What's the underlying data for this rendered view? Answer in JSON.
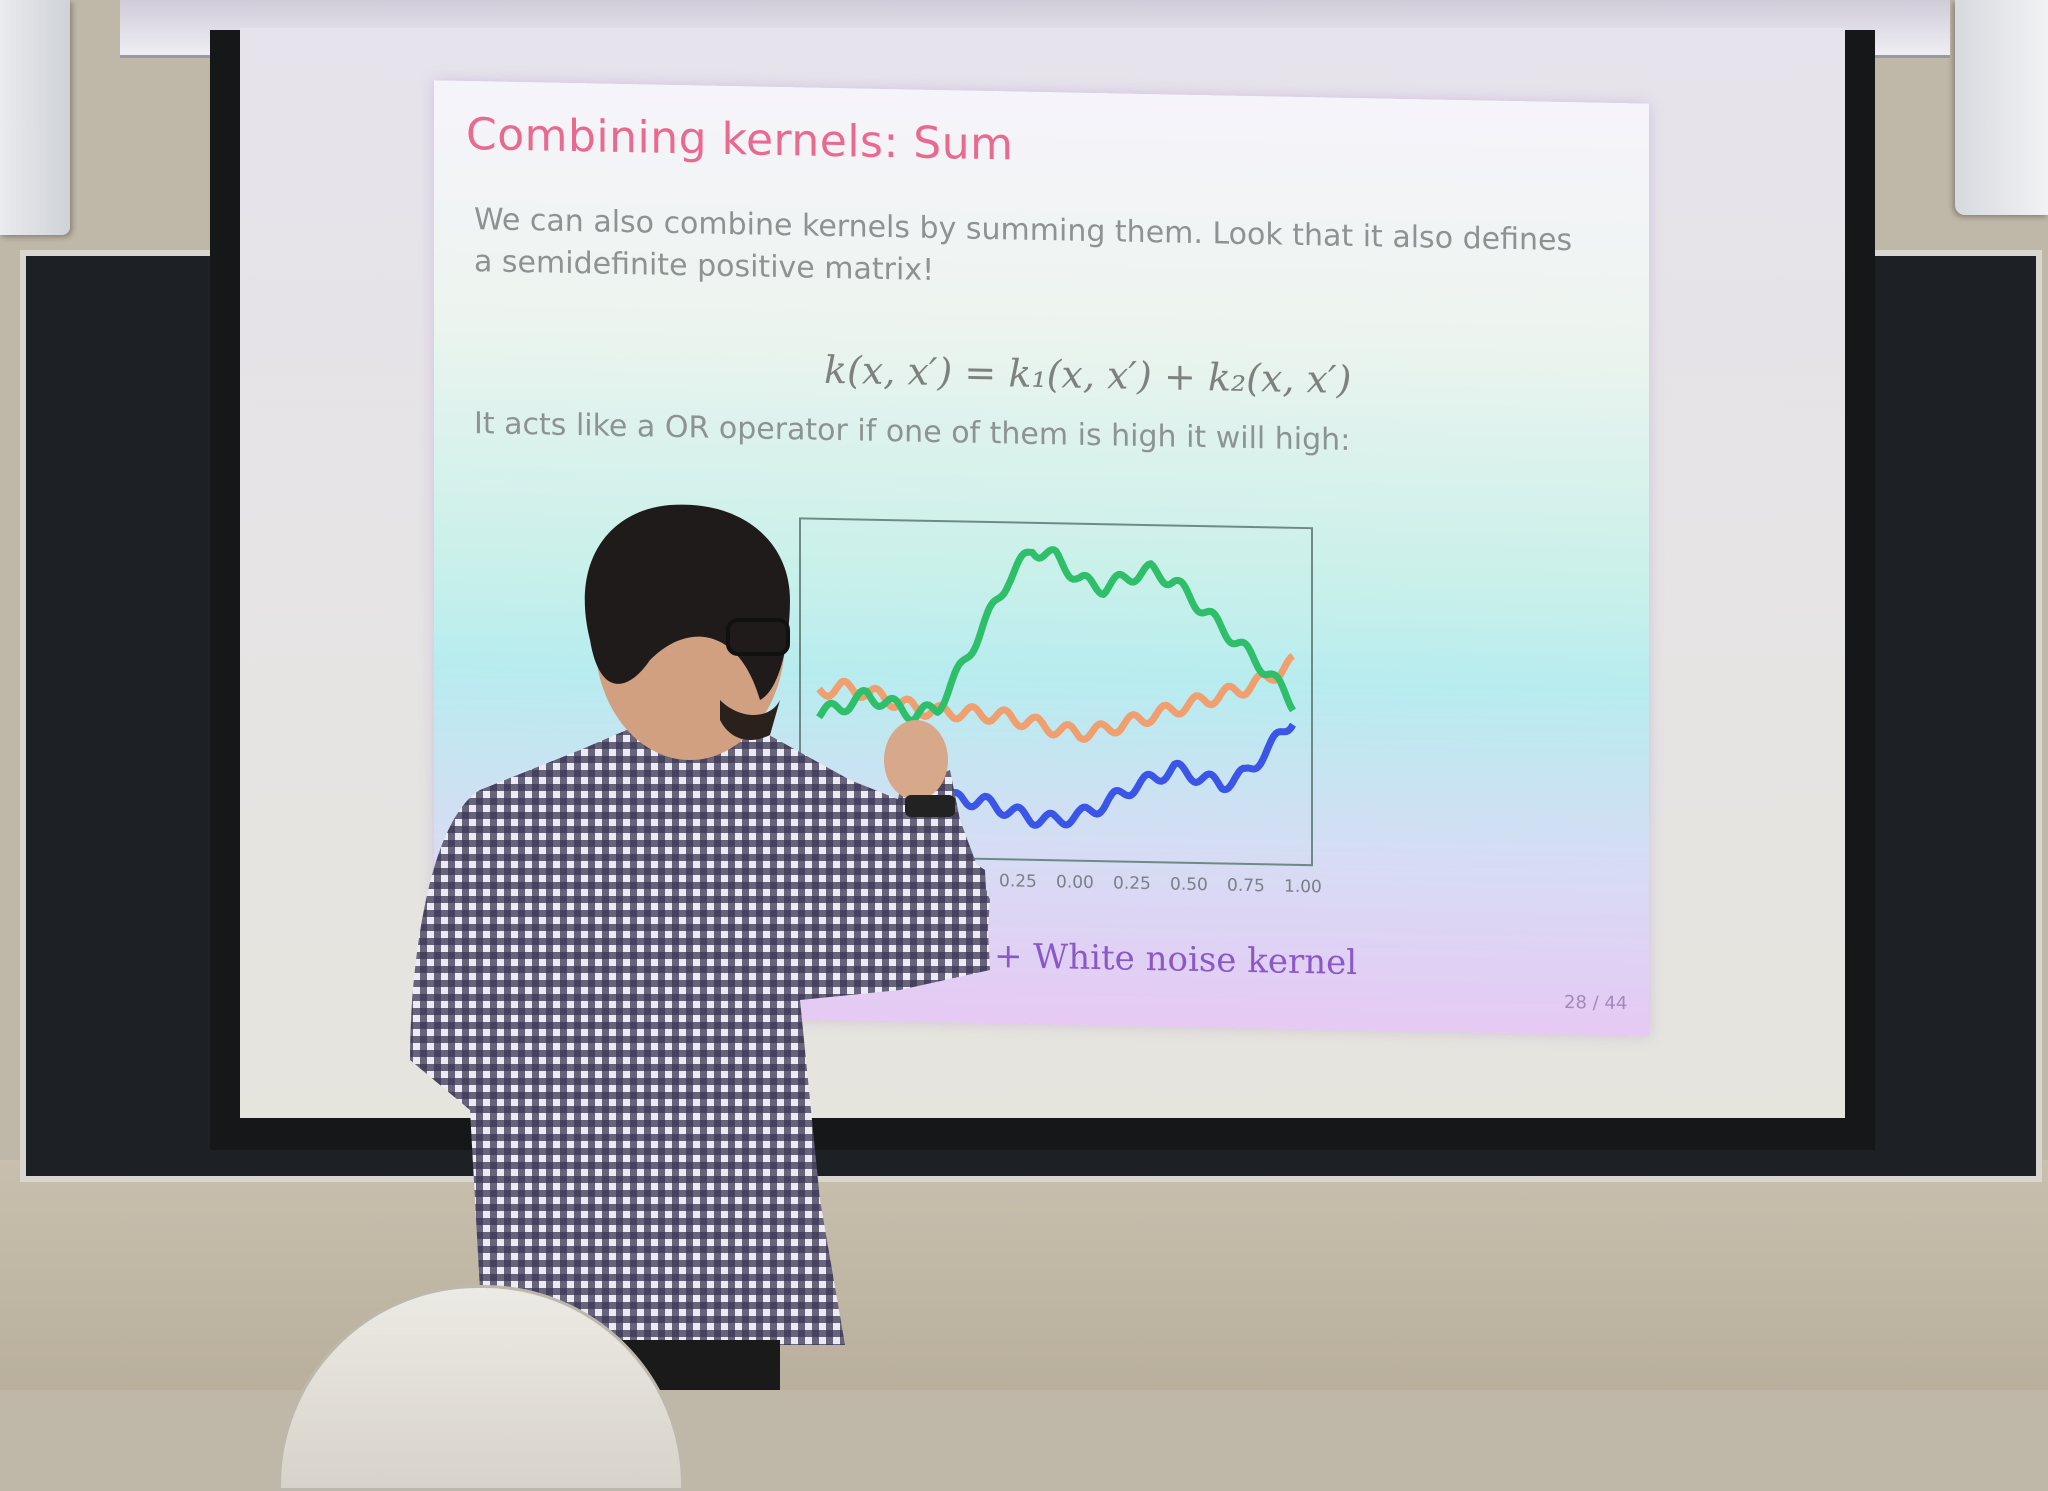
{
  "slide": {
    "title": "Combining kernels: Sum",
    "line1": "We can also combine kernels by summing them. Look that it also defines",
    "line2": "a semidefinite positive matrix!",
    "equation": "k(x, x′) = k₁(x, x′) + k₂(x, x′)",
    "line3": "It acts like a OR operator if one of them is high it will high:",
    "caption": "+ White noise kernel",
    "page": "28 / 44"
  },
  "chart_data": {
    "type": "line",
    "x_tick_labels": [
      "0.25",
      "0.00",
      "0.25",
      "0.50",
      "0.75",
      "1.00"
    ],
    "xlim": [
      -1,
      1
    ],
    "ylim": [
      -2,
      2
    ],
    "series": [
      {
        "color": "#3b55e6",
        "x": [
          -1.0,
          -0.9,
          -0.8,
          -0.7,
          -0.6,
          -0.5,
          -0.4,
          -0.3,
          -0.2,
          -0.1,
          0.0,
          0.1,
          0.2,
          0.3,
          0.4,
          0.5,
          0.6,
          0.7,
          0.8,
          0.9,
          1.0
        ],
        "values": [
          -1.2,
          -1.55,
          -1.75,
          -1.8,
          -1.65,
          -1.5,
          -1.45,
          -1.5,
          -1.6,
          -1.7,
          -1.72,
          -1.65,
          -1.5,
          -1.3,
          -1.15,
          -1.0,
          -1.1,
          -1.2,
          -1.05,
          -0.7,
          -0.3
        ]
      },
      {
        "color": "#f0a070",
        "x": [
          -1.0,
          -0.9,
          -0.8,
          -0.7,
          -0.6,
          -0.5,
          -0.4,
          -0.3,
          -0.2,
          -0.1,
          0.0,
          0.1,
          0.2,
          0.3,
          0.4,
          0.5,
          0.6,
          0.7,
          0.8,
          0.9,
          1.0
        ],
        "values": [
          -0.05,
          0.0,
          -0.05,
          -0.15,
          -0.25,
          -0.3,
          -0.3,
          -0.32,
          -0.35,
          -0.42,
          -0.5,
          -0.55,
          -0.5,
          -0.4,
          -0.3,
          -0.2,
          -0.1,
          0.0,
          0.1,
          0.25,
          0.45
        ]
      },
      {
        "color": "#2fbf6a",
        "x": [
          -1.0,
          -0.9,
          -0.8,
          -0.7,
          -0.6,
          -0.5,
          -0.4,
          -0.3,
          -0.2,
          -0.1,
          0.0,
          0.1,
          0.2,
          0.3,
          0.4,
          0.5,
          0.6,
          0.7,
          0.8,
          0.9,
          1.0
        ],
        "values": [
          -0.35,
          -0.25,
          -0.1,
          -0.2,
          -0.35,
          -0.25,
          0.3,
          0.9,
          1.5,
          1.9,
          1.8,
          1.5,
          1.4,
          1.55,
          1.65,
          1.5,
          1.2,
          0.9,
          0.6,
          0.3,
          -0.1
        ]
      }
    ]
  }
}
